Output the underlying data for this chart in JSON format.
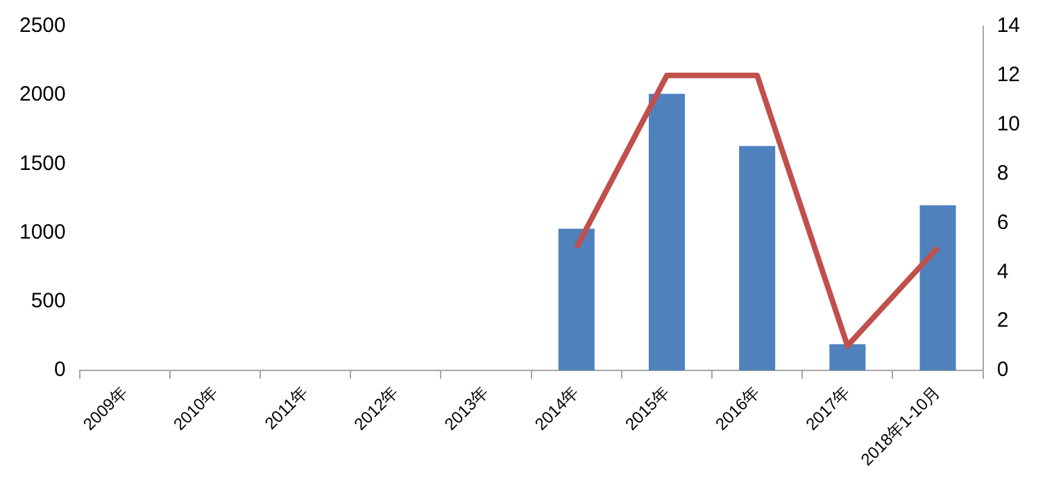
{
  "chart_data": {
    "type": "bar",
    "categories": [
      "2009年",
      "2010年",
      "2011年",
      "2012年",
      "2013年",
      "2014年",
      "2015年",
      "2016年",
      "2017年",
      "2018年1-10月"
    ],
    "series": [
      {
        "color": "#4f81bd",
        "values": [
          null,
          null,
          null,
          null,
          null,
          1030,
          2010,
          1630,
          190,
          1200
        ]
      },
      {
        "type": "line",
        "axis": "y2",
        "color": "#c0504d",
        "values": [
          null,
          null,
          null,
          null,
          null,
          5,
          12,
          12,
          1,
          5
        ]
      }
    ],
    "ylim": [
      0,
      2500
    ],
    "yticks": [
      0,
      500,
      1000,
      1500,
      2000,
      2500
    ],
    "y2lim": [
      0,
      14
    ],
    "y2ticks": [
      0,
      2,
      4,
      6,
      8,
      10,
      12,
      14
    ],
    "grid": false,
    "legend": false,
    "marker": "none"
  }
}
